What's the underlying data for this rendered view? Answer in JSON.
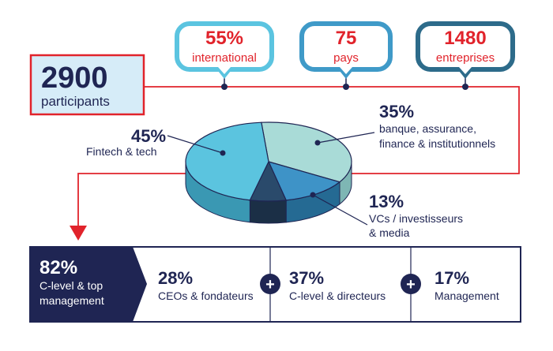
{
  "participants": {
    "value": "2900",
    "label": "participants"
  },
  "bubbles": [
    {
      "value": "55%",
      "label": "international"
    },
    {
      "value": "75",
      "label": "pays"
    },
    {
      "value": "1480",
      "label": "entreprises"
    }
  ],
  "colors": {
    "navy": "#1f2553",
    "red": "#e1232b",
    "bubble_borders": [
      "#5bc4e0",
      "#3f9ac8",
      "#2d6b8a"
    ],
    "participants_fill": "#d6ecf8"
  },
  "chart_data": {
    "type": "pie",
    "title": "",
    "slices": [
      {
        "name": "Fintech & tech",
        "value": 45,
        "pct_label": "45%",
        "color": "#5bc4df",
        "side_color": "#3a98b3"
      },
      {
        "name": "banque, assurance,\nfinance & institutionnels",
        "value": 35,
        "pct_label": "35%",
        "color": "#a9dbd7",
        "side_color": "#7eb6b4"
      },
      {
        "name": "VCs / investisseurs\n& media",
        "value": 13,
        "pct_label": "13%",
        "color": "#3e93c7",
        "side_color": "#256a93"
      },
      {
        "name": "",
        "value": 7,
        "pct_label": "",
        "color": "#2a4a6b",
        "side_color": "#1b2f46"
      }
    ]
  },
  "management": {
    "lead": {
      "value": "82%",
      "label_line1": "C-level & top",
      "label_line2": "management"
    },
    "items": [
      {
        "value": "28%",
        "label": "CEOs & fondateurs"
      },
      {
        "value": "37%",
        "label": "C-level & directeurs"
      },
      {
        "value": "17%",
        "label": "Management"
      }
    ],
    "plus": "+"
  }
}
